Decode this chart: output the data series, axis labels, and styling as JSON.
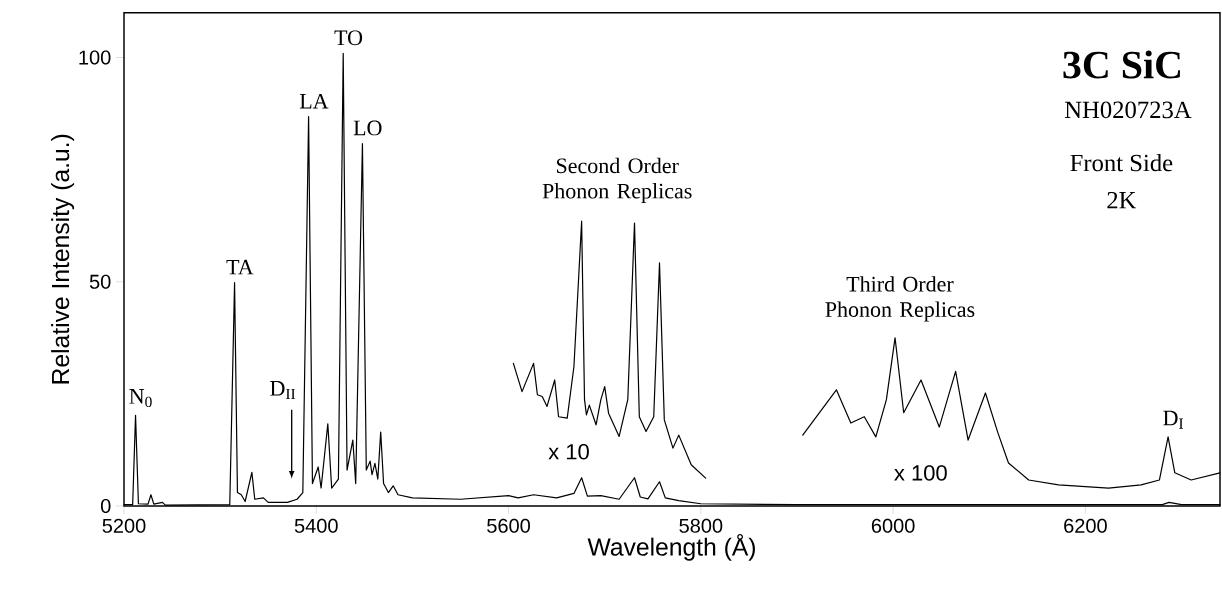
{
  "chart_data": {
    "type": "line",
    "title": "3C SiC",
    "xlabel": "Wavelength (Å)",
    "ylabel": "Relative Intensity (a.u.)",
    "xlim": [
      5200,
      6340
    ],
    "ylim": [
      0,
      110
    ],
    "xticks": [
      5200,
      5400,
      5600,
      5800,
      6000,
      6200
    ],
    "yticks": [
      0,
      50,
      100
    ],
    "line_style": "solid",
    "marker": "none",
    "series": [
      {
        "color": "#000000",
        "x": [
          5200,
          5209,
          5212,
          5215,
          5225,
          5228,
          5231,
          5240,
          5243,
          5310,
          5315,
          5318,
          5322,
          5326,
          5333,
          5336,
          5345,
          5350,
          5370,
          5380,
          5386,
          5392,
          5396,
          5402,
          5405,
          5412,
          5416,
          5423,
          5428,
          5432,
          5438,
          5441,
          5448,
          5452,
          5456,
          5458,
          5461,
          5464,
          5467,
          5470,
          5475,
          5480,
          5485,
          5500,
          5550,
          5600,
          5610,
          5626,
          5650,
          5668,
          5676,
          5682,
          5696,
          5715,
          5731,
          5737,
          5745,
          5757,
          5763,
          5777,
          5800,
          5900,
          6000,
          6280,
          6287,
          6300,
          6340
        ],
        "values": [
          0.3,
          0.3,
          20.2,
          0.5,
          0.4,
          2.5,
          0.4,
          0.8,
          0.2,
          0.3,
          49.8,
          3,
          2.5,
          1,
          7.5,
          1.5,
          1.8,
          0.8,
          0.8,
          1.5,
          3,
          86.8,
          5,
          8.7,
          4,
          18.3,
          4,
          6,
          100.9,
          8,
          14.7,
          5,
          80.8,
          8,
          10,
          7,
          9.5,
          6,
          16.5,
          5,
          3,
          4.5,
          2.5,
          1.8,
          1.5,
          2.3,
          1.8,
          2.5,
          1.8,
          2.8,
          6.3,
          2.2,
          2.3,
          1.5,
          6.3,
          2,
          1.6,
          5.4,
          1.8,
          1.2,
          0.5,
          0.3,
          0.3,
          0.3,
          0.8,
          0.3,
          0.3
        ]
      },
      {
        "name": "x 10",
        "color": "#000000",
        "x": [
          5605,
          5614,
          5626,
          5630,
          5635,
          5640,
          5648,
          5652,
          5661,
          5668,
          5676,
          5679,
          5681,
          5684,
          5691,
          5696,
          5700,
          5704,
          5715,
          5724,
          5731,
          5736,
          5743,
          5751,
          5757,
          5762,
          5771,
          5777,
          5790,
          5805
        ],
        "values": [
          31.8,
          25.5,
          31.8,
          24.8,
          24.4,
          22.2,
          28.1,
          19.9,
          19.6,
          31.1,
          63.5,
          23.7,
          20.3,
          22.5,
          18.1,
          23.7,
          26.6,
          20.7,
          15.5,
          23.7,
          63.1,
          19.9,
          16.6,
          19.9,
          54.2,
          19.2,
          12.9,
          15.8,
          9.2,
          6.2
        ]
      },
      {
        "name": "x 100",
        "color": "#000000",
        "x": [
          5906,
          5941,
          5956,
          5970,
          5982,
          5993,
          6002,
          6011,
          6029,
          6048,
          6065,
          6078,
          6096,
          6109,
          6120,
          6141,
          6172,
          6224,
          6258,
          6277,
          6286,
          6293,
          6310,
          6340
        ],
        "values": [
          15.8,
          25.9,
          18.5,
          19.9,
          15.4,
          23.7,
          37.5,
          20.8,
          28.1,
          17.6,
          30,
          14.7,
          25.2,
          16.3,
          9.6,
          5.8,
          4.7,
          4.0,
          4.7,
          5.8,
          15.4,
          7.4,
          5.8,
          7.4
        ]
      }
    ],
    "annotations": [
      {
        "text": "N$_{0}$",
        "x": 5212,
        "y": 20.2
      },
      {
        "text": "TA",
        "x": 5315,
        "y": 49.8
      },
      "D$_{II}$",
      {
        "text": "LA",
        "x": 5392,
        "y": 86.8
      },
      {
        "text": "TO",
        "x": 5428,
        "y": 100.9
      },
      {
        "text": "LO",
        "x": 5448,
        "y": 80.8
      },
      "Second Order Phonon Replicas",
      "Third Order Phonon Replicas",
      "NH020723A",
      "Front Side",
      "2K",
      {
        "text": "D$_{I}$",
        "x": 6286,
        "y": 15.4
      }
    ]
  }
}
